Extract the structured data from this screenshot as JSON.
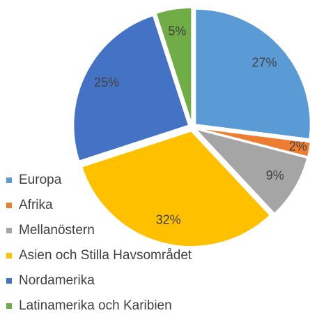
{
  "chart_data": {
    "type": "pie",
    "categories": [
      "Europa",
      "Afrika",
      "Mellanöstern",
      "Asien och Stilla Havsområdet",
      "Nordamerika",
      "Latinamerika och Karibien"
    ],
    "values": [
      27,
      2,
      9,
      32,
      25,
      5
    ],
    "value_labels": [
      "27%",
      "2%",
      "9%",
      "32%",
      "25%",
      "5%"
    ],
    "colors": [
      "#5b9bd5",
      "#ed7d31",
      "#a5a5a5",
      "#ffc000",
      "#4472c4",
      "#70ad47"
    ],
    "legend": "bottom-left"
  }
}
